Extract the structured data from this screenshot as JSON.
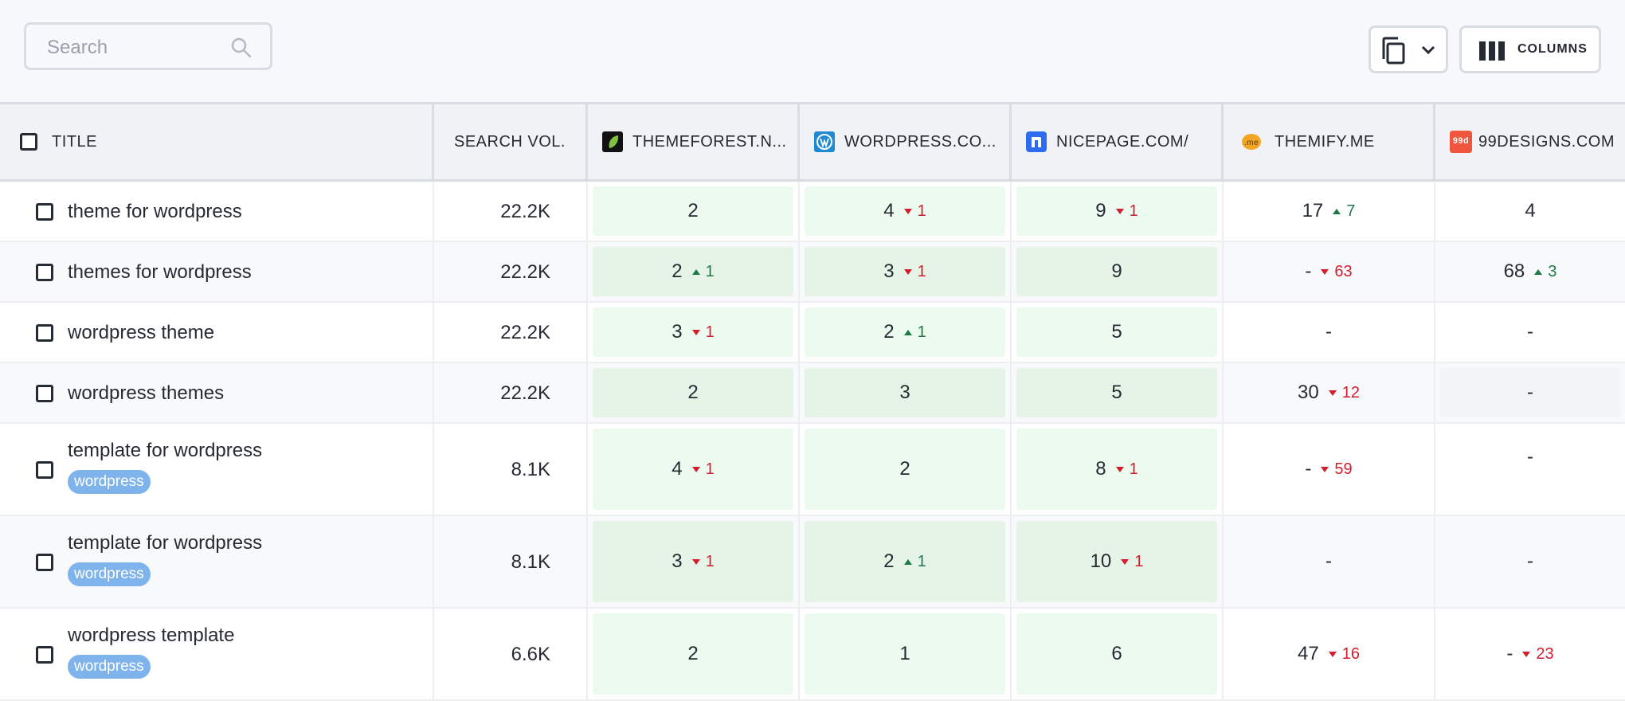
{
  "toolbar": {
    "search_placeholder": "Search",
    "columns_label": "COLUMNS"
  },
  "header": {
    "title": "TITLE",
    "search_vol": "SEARCH VOL.",
    "sites": [
      {
        "label": "THEMEFOREST.N...",
        "icon": "themeforest-leaf-icon",
        "color": "#111111"
      },
      {
        "label": "WORDPRESS.CO...",
        "icon": "wordpress-icon",
        "color": "#1f8ad2"
      },
      {
        "label": "NICEPAGE.COM/",
        "icon": "nicepage-icon",
        "color": "#2d6cf0"
      },
      {
        "label": "THEMIFY.ME",
        "icon": "themify-icon",
        "color": "#f3a623"
      },
      {
        "label": "99DESIGNS.COM",
        "icon": "99designs-icon",
        "color": "#f0563e"
      }
    ]
  },
  "rows": [
    {
      "title": "theme for wordpress",
      "tag": "",
      "vol": "22.2K",
      "ranks": [
        {
          "v": "2",
          "d": "",
          "dir": ""
        },
        {
          "v": "4",
          "d": "1",
          "dir": "down"
        },
        {
          "v": "9",
          "d": "1",
          "dir": "down"
        },
        {
          "v": "17",
          "d": "7",
          "dir": "up"
        },
        {
          "v": "4",
          "d": "",
          "dir": ""
        }
      ]
    },
    {
      "title": "themes for wordpress",
      "tag": "",
      "vol": "22.2K",
      "ranks": [
        {
          "v": "2",
          "d": "1",
          "dir": "up"
        },
        {
          "v": "3",
          "d": "1",
          "dir": "down"
        },
        {
          "v": "9",
          "d": "",
          "dir": ""
        },
        {
          "v": "-",
          "d": "63",
          "dir": "down"
        },
        {
          "v": "68",
          "d": "3",
          "dir": "up"
        }
      ]
    },
    {
      "title": "wordpress theme",
      "tag": "",
      "vol": "22.2K",
      "ranks": [
        {
          "v": "3",
          "d": "1",
          "dir": "down"
        },
        {
          "v": "2",
          "d": "1",
          "dir": "up"
        },
        {
          "v": "5",
          "d": "",
          "dir": ""
        },
        {
          "v": "-",
          "d": "",
          "dir": ""
        },
        {
          "v": "-",
          "d": "",
          "dir": ""
        }
      ]
    },
    {
      "title": "wordpress themes",
      "tag": "",
      "vol": "22.2K",
      "ranks": [
        {
          "v": "2",
          "d": "",
          "dir": ""
        },
        {
          "v": "3",
          "d": "",
          "dir": ""
        },
        {
          "v": "5",
          "d": "",
          "dir": ""
        },
        {
          "v": "30",
          "d": "12",
          "dir": "down"
        },
        {
          "v": "-",
          "d": "",
          "dir": ""
        }
      ]
    },
    {
      "title": "template for wordpress",
      "tag": "wordpress",
      "vol": "8.1K",
      "ranks": [
        {
          "v": "4",
          "d": "1",
          "dir": "down"
        },
        {
          "v": "2",
          "d": "",
          "dir": ""
        },
        {
          "v": "8",
          "d": "1",
          "dir": "down"
        },
        {
          "v": "-",
          "d": "59",
          "dir": "down"
        },
        {
          "v": "-",
          "d": "",
          "dir": ""
        }
      ]
    },
    {
      "title": "template for wordpress",
      "tag": "wordpress",
      "vol": "8.1K",
      "ranks": [
        {
          "v": "3",
          "d": "1",
          "dir": "down"
        },
        {
          "v": "2",
          "d": "1",
          "dir": "up"
        },
        {
          "v": "10",
          "d": "1",
          "dir": "down"
        },
        {
          "v": "-",
          "d": "",
          "dir": ""
        },
        {
          "v": "-",
          "d": "",
          "dir": ""
        }
      ]
    },
    {
      "title": "wordpress template",
      "tag": "wordpress",
      "vol": "6.6K",
      "ranks": [
        {
          "v": "2",
          "d": "",
          "dir": ""
        },
        {
          "v": "1",
          "d": "",
          "dir": ""
        },
        {
          "v": "6",
          "d": "",
          "dir": ""
        },
        {
          "v": "47",
          "d": "16",
          "dir": "down"
        },
        {
          "v": "-",
          "d": "23",
          "dir": "down"
        }
      ]
    }
  ]
}
